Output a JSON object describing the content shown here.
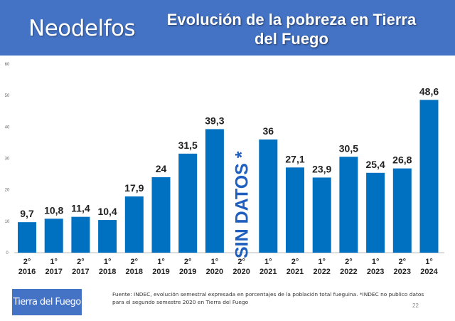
{
  "header": {
    "brand": "Neodelfos",
    "title": "Evolución de la pobreza en Tierra del Fuego",
    "color": "#4472c4"
  },
  "footer": {
    "legend_label": "Tierra del Fuego",
    "note": "Fuente: INDEC, evolución semestral expresada en porcentajes de la población total fueguina. *INDEC no publico datos para el segundo semestre 2020 en Tierra del Fuego",
    "page_number": "22"
  },
  "chart_data": {
    "type": "bar",
    "categories": [
      [
        "2°",
        "2016"
      ],
      [
        "1°",
        "2017"
      ],
      [
        "2°",
        "2017"
      ],
      [
        "1°",
        "2018"
      ],
      [
        "2°",
        "2018"
      ],
      [
        "1°",
        "2019"
      ],
      [
        "2°",
        "2019"
      ],
      [
        "1°",
        "2020"
      ],
      [
        "2°",
        "2020"
      ],
      [
        "1°",
        "2021"
      ],
      [
        "2°",
        "2021"
      ],
      [
        "1°",
        "2022"
      ],
      [
        "2°",
        "2022"
      ],
      [
        "1°",
        "2023"
      ],
      [
        "2°",
        "2023"
      ],
      [
        "1°",
        "2024"
      ]
    ],
    "values": [
      9.7,
      10.8,
      11.4,
      10.4,
      17.9,
      24,
      31.5,
      39.3,
      null,
      36,
      27.1,
      23.9,
      30.5,
      25.4,
      26.8,
      48.6
    ],
    "data_labels": [
      "9,7",
      "10,8",
      "11,4",
      "10,4",
      "17,9",
      "24",
      "31,5",
      "39,3",
      "",
      "36",
      "27,1",
      "23,9",
      "30,5",
      "25,4",
      "26,8",
      "48,6"
    ],
    "annotation": "SIN DATOS *",
    "yticks": [
      0,
      10,
      20,
      30,
      40,
      50,
      60
    ],
    "ylim": [
      0,
      60
    ],
    "grid": false,
    "bar_color": "#0070c0"
  }
}
